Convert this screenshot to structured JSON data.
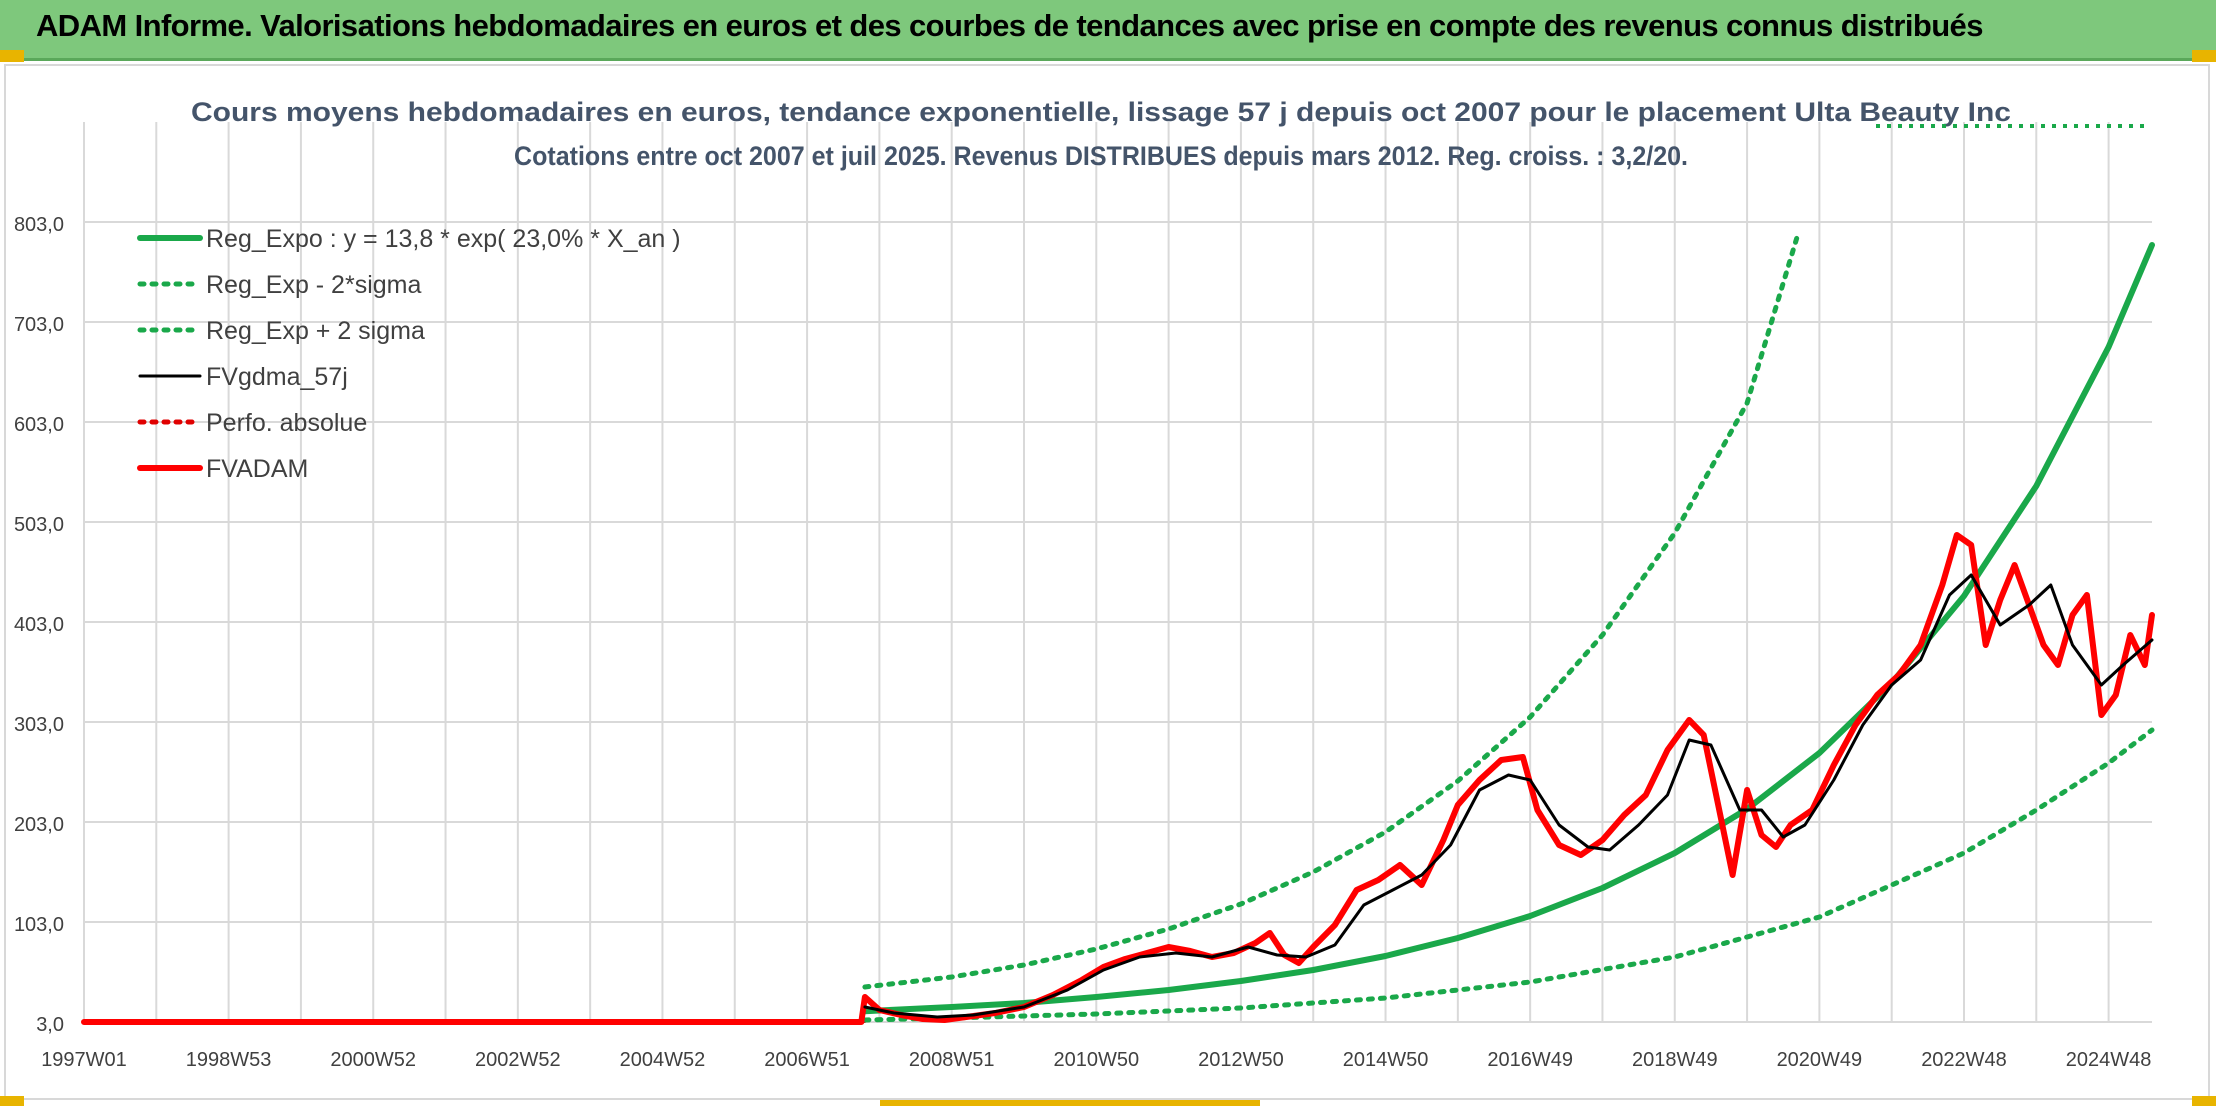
{
  "banner": {
    "title": "ADAM Informe. Valorisations hebdomadaires en euros et des courbes de tendances avec prise en compte des revenus connus distribués"
  },
  "colors": {
    "banner_bg": "#7ec87c",
    "reg_expo": "#1aa84a",
    "sigma": "#1aa84a",
    "fvgdma": "#000000",
    "perfo": "#e00000",
    "fvadam": "#ff0000",
    "grid": "#d9d9d9"
  },
  "chart_data": {
    "type": "line",
    "title_line1": "Cours moyens hebdomadaires en euros, tendance exponentielle, lissage 57 j depuis oct 2007 pour le placement Ulta Beauty Inc",
    "title_line2": "Cotations entre oct 2007 et juil 2025. Revenus DISTRIBUES depuis mars 2012. Reg. croiss. : 3,2/20.",
    "x_ticks": [
      "1997W01",
      "1998W53",
      "2000W52",
      "2002W52",
      "2004W52",
      "2006W51",
      "2008W51",
      "2010W50",
      "2012W50",
      "2014W50",
      "2016W49",
      "2018W49",
      "2020W49",
      "2022W48",
      "2024W48"
    ],
    "x_tick_years": [
      1997.0,
      1999.0,
      2001.0,
      2003.0,
      2005.0,
      2007.0,
      2009.0,
      2011.0,
      2013.0,
      2015.0,
      2017.0,
      2019.0,
      2021.0,
      2023.0,
      2025.0
    ],
    "x_range": [
      1997.0,
      2025.6
    ],
    "y_ticks": [
      "3,0",
      "103,0",
      "203,0",
      "303,0",
      "403,0",
      "503,0",
      "603,0",
      "703,0",
      "803,0"
    ],
    "ylim": [
      3,
      903
    ],
    "legend_placement": "top-left",
    "grid": true,
    "series": [
      {
        "name": "Reg_Expo : y = 13,8 * exp( 23,0% *  X_an )",
        "style": "solid-thick",
        "color": "#1aa84a",
        "x": [
          2007.8,
          2009,
          2010,
          2011,
          2012,
          2013,
          2014,
          2015,
          2016,
          2017,
          2018,
          2019,
          2020,
          2021,
          2022,
          2023,
          2024,
          2025,
          2025.6
        ],
        "y": [
          13.8,
          18,
          22,
          28,
          35,
          44,
          55,
          69,
          87,
          109,
          137,
          172,
          216,
          272,
          342,
          429,
          539,
          678,
          780
        ]
      },
      {
        "name": "Reg_Exp - 2*sigma",
        "style": "dotted",
        "color": "#1aa84a",
        "x": [
          2007.8,
          2009,
          2011,
          2013,
          2015,
          2017,
          2019,
          2021,
          2023,
          2024,
          2025,
          2025.6
        ],
        "y": [
          5,
          7,
          11,
          17,
          27,
          43,
          68,
          108,
          172,
          215,
          262,
          295
        ]
      },
      {
        "name": "Reg_Exp + 2 sigma",
        "style": "dotted",
        "color": "#1aa84a",
        "x": [
          2007.8,
          2009,
          2010,
          2011,
          2012,
          2013,
          2014,
          2015,
          2016,
          2017,
          2018,
          2019,
          2020,
          2020.7
        ],
        "y": [
          38,
          48,
          60,
          76,
          96,
          121,
          153,
          193,
          244,
          308,
          390,
          492,
          622,
          790
        ]
      },
      {
        "name": "FVgdma_57j",
        "style": "solid",
        "color": "#000000",
        "x": [
          2007.8,
          2008.2,
          2008.8,
          2009.3,
          2010,
          2010.6,
          2011.1,
          2011.6,
          2012.1,
          2012.6,
          2013.1,
          2013.5,
          2013.9,
          2014.3,
          2014.7,
          2015.1,
          2015.5,
          2015.9,
          2016.3,
          2016.7,
          2017.0,
          2017.4,
          2017.8,
          2018.1,
          2018.5,
          2018.9,
          2019.2,
          2019.5,
          2019.9,
          2020.2,
          2020.5,
          2020.8,
          2021.2,
          2021.6,
          2022.0,
          2022.4,
          2022.8,
          2023.1,
          2023.5,
          2023.9,
          2024.2,
          2024.5,
          2024.9,
          2025.2,
          2025.6
        ],
        "y": [
          18,
          12,
          8,
          10,
          18,
          35,
          55,
          68,
          72,
          68,
          78,
          70,
          68,
          80,
          120,
          135,
          150,
          180,
          235,
          250,
          245,
          200,
          178,
          175,
          200,
          230,
          285,
          280,
          215,
          215,
          188,
          200,
          245,
          300,
          340,
          365,
          430,
          450,
          400,
          420,
          440,
          380,
          340,
          360,
          385
        ]
      },
      {
        "name": "Perfo. absolue",
        "style": "dotted",
        "color": "#e00000",
        "x": [
          1997.0,
          2007.8
        ],
        "y": [
          3,
          3
        ]
      },
      {
        "name": "FVADAM",
        "style": "solid-thick",
        "color": "#ff0000",
        "x": [
          1997.0,
          2007.75,
          2007.8,
          2008.0,
          2008.3,
          2008.6,
          2008.9,
          2009.2,
          2009.6,
          2010.0,
          2010.4,
          2010.8,
          2011.1,
          2011.4,
          2011.7,
          2012.0,
          2012.3,
          2012.6,
          2012.9,
          2013.2,
          2013.4,
          2013.6,
          2013.8,
          2014.0,
          2014.3,
          2014.6,
          2014.9,
          2015.2,
          2015.5,
          2015.8,
          2016.0,
          2016.3,
          2016.6,
          2016.9,
          2017.1,
          2017.4,
          2017.7,
          2018.0,
          2018.3,
          2018.6,
          2018.9,
          2019.2,
          2019.4,
          2019.6,
          2019.8,
          2020.0,
          2020.2,
          2020.4,
          2020.6,
          2020.9,
          2021.2,
          2021.5,
          2021.8,
          2022.1,
          2022.4,
          2022.7,
          2022.9,
          2023.1,
          2023.3,
          2023.5,
          2023.7,
          2023.9,
          2024.1,
          2024.3,
          2024.5,
          2024.7,
          2024.9,
          2025.1,
          2025.3,
          2025.5,
          2025.6
        ],
        "y": [
          3,
          3,
          28,
          15,
          10,
          6,
          5,
          8,
          12,
          18,
          30,
          45,
          58,
          66,
          72,
          78,
          74,
          68,
          72,
          82,
          92,
          70,
          62,
          78,
          100,
          135,
          145,
          160,
          140,
          185,
          220,
          245,
          265,
          268,
          215,
          180,
          170,
          185,
          210,
          230,
          275,
          305,
          290,
          220,
          150,
          235,
          190,
          178,
          200,
          215,
          260,
          300,
          330,
          350,
          380,
          440,
          490,
          480,
          380,
          425,
          460,
          420,
          380,
          360,
          410,
          430,
          310,
          330,
          390,
          360,
          410
        ]
      }
    ]
  }
}
